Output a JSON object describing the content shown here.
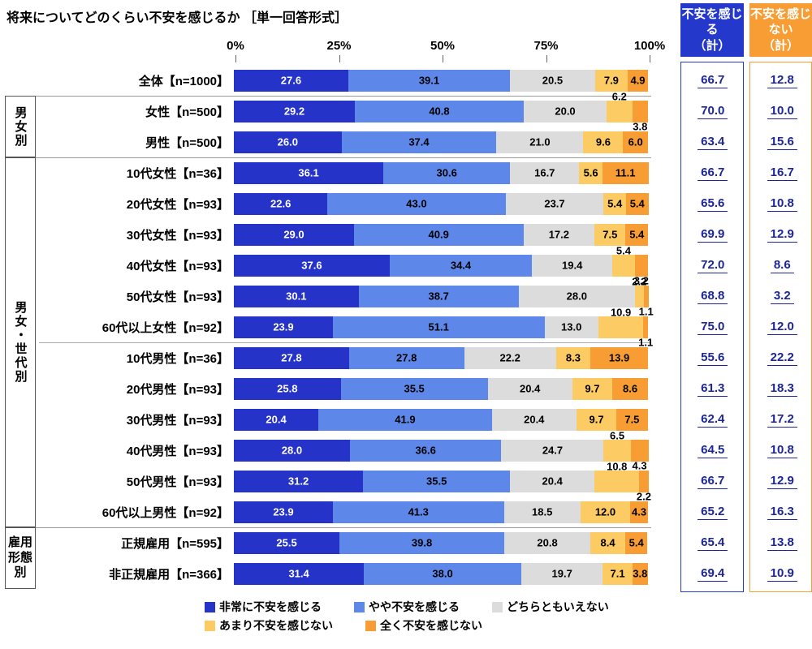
{
  "title": "将来についてどのくらい不安を感じるか ［単一回答形式］",
  "summary_columns": [
    {
      "title": "不安を感じる\n（計）",
      "color": "#2438cc"
    },
    {
      "title": "不安を感じない\n（計）",
      "color": "#f89d33"
    }
  ],
  "legend": {
    "line1": [
      {
        "label": "非常に不安を感じる",
        "color": "#2633c8"
      },
      {
        "label": "やや不安を感じる",
        "color": "#5d87e8"
      },
      {
        "label": "どちらともいえない",
        "color": "#dcdcdc"
      }
    ],
    "line2": [
      {
        "label": "あまり不安を感じない",
        "color": "#fccb63"
      },
      {
        "label": "全く不安を感じない",
        "color": "#f89d33"
      }
    ]
  },
  "chart_data": {
    "type": "bar",
    "stacked": true,
    "orientation": "horizontal",
    "title": "将来についてどのくらい不安を感じるか ［単一回答形式］",
    "xlim": [
      0,
      100
    ],
    "x_ticks": [
      "0%",
      "25%",
      "50%",
      "75%",
      "100%"
    ],
    "series_names": [
      "非常に不安を感じる",
      "やや不安を感じる",
      "どちらともいえない",
      "あまり不安を感じない",
      "全く不安を感じない"
    ],
    "series_colors": [
      "#2633c8",
      "#5d87e8",
      "#dcdcdc",
      "#fccb63",
      "#f89d33"
    ],
    "summary_value_labels": [
      "不安を感じる（計）",
      "不安を感じない（計）"
    ],
    "groups": [
      {
        "label": "",
        "orientation": "none",
        "rows": [
          {
            "label": "全体【n=1000】",
            "values": [
              27.6,
              39.1,
              20.5,
              7.9,
              4.9
            ],
            "anxious_total": 66.7,
            "not_anxious_total": 12.8,
            "tail": "inline"
          }
        ]
      },
      {
        "label": "男女別",
        "orientation": "vertical",
        "rows": [
          {
            "label": "女性【n=500】",
            "values": [
              29.2,
              40.8,
              20.0,
              6.2,
              3.8
            ],
            "anxious_total": 70.0,
            "not_anxious_total": 10.0,
            "tail": "stacked"
          },
          {
            "label": "男性【n=500】",
            "values": [
              26.0,
              37.4,
              21.0,
              9.6,
              6.0
            ],
            "anxious_total": 63.4,
            "not_anxious_total": 15.6,
            "tail": "inline"
          }
        ]
      },
      {
        "label": "男女・世代別",
        "orientation": "vertical",
        "divider_after": 5,
        "rows": [
          {
            "label": "10代女性【n=36】",
            "values": [
              36.1,
              30.6,
              16.7,
              5.6,
              11.1
            ],
            "anxious_total": 66.7,
            "not_anxious_total": 16.7,
            "tail": "inline"
          },
          {
            "label": "20代女性【n=93】",
            "values": [
              22.6,
              43.0,
              23.7,
              5.4,
              5.4
            ],
            "anxious_total": 65.6,
            "not_anxious_total": 10.8,
            "tail": "inline"
          },
          {
            "label": "30代女性【n=93】",
            "values": [
              29.0,
              40.9,
              17.2,
              7.5,
              5.4
            ],
            "anxious_total": 69.9,
            "not_anxious_total": 12.9,
            "tail": "inline"
          },
          {
            "label": "40代女性【n=93】",
            "values": [
              37.6,
              34.4,
              19.4,
              5.4,
              3.2
            ],
            "anxious_total": 72.0,
            "not_anxious_total": 8.6,
            "tail": "stacked"
          },
          {
            "label": "50代女性【n=93】",
            "values": [
              30.1,
              38.7,
              28.0,
              2.2,
              1.1
            ],
            "anxious_total": 68.8,
            "not_anxious_total": 3.2,
            "tail": "stacked"
          },
          {
            "label": "60代以上女性【n=92】",
            "values": [
              23.9,
              51.1,
              13.0,
              10.9,
              1.1
            ],
            "anxious_total": 75.0,
            "not_anxious_total": 12.0,
            "tail": "stacked"
          },
          {
            "label": "10代男性【n=36】",
            "values": [
              27.8,
              27.8,
              22.2,
              8.3,
              13.9
            ],
            "anxious_total": 55.6,
            "not_anxious_total": 22.2,
            "tail": "inline"
          },
          {
            "label": "20代男性【n=93】",
            "values": [
              25.8,
              35.5,
              20.4,
              9.7,
              8.6
            ],
            "anxious_total": 61.3,
            "not_anxious_total": 18.3,
            "tail": "inline"
          },
          {
            "label": "30代男性【n=93】",
            "values": [
              20.4,
              41.9,
              20.4,
              9.7,
              7.5
            ],
            "anxious_total": 62.4,
            "not_anxious_total": 17.2,
            "tail": "inline"
          },
          {
            "label": "40代男性【n=93】",
            "values": [
              28.0,
              36.6,
              24.7,
              6.5,
              4.3
            ],
            "anxious_total": 64.5,
            "not_anxious_total": 10.8,
            "tail": "stacked"
          },
          {
            "label": "50代男性【n=93】",
            "values": [
              31.2,
              35.5,
              20.4,
              10.8,
              2.2
            ],
            "anxious_total": 66.7,
            "not_anxious_total": 12.9,
            "tail": "stacked"
          },
          {
            "label": "60代以上男性【n=92】",
            "values": [
              23.9,
              41.3,
              18.5,
              12.0,
              4.3
            ],
            "anxious_total": 65.2,
            "not_anxious_total": 16.3,
            "tail": "inline"
          }
        ]
      },
      {
        "label": "雇用\n形態別",
        "orientation": "horizontal",
        "rows": [
          {
            "label": "正規雇用【n=595】",
            "values": [
              25.5,
              39.8,
              20.8,
              8.4,
              5.4
            ],
            "anxious_total": 65.4,
            "not_anxious_total": 13.8,
            "tail": "inline"
          },
          {
            "label": "非正規雇用【n=366】",
            "values": [
              31.4,
              38.0,
              19.7,
              7.1,
              3.8
            ],
            "anxious_total": 69.4,
            "not_anxious_total": 10.9,
            "tail": "inline"
          }
        ]
      }
    ]
  }
}
